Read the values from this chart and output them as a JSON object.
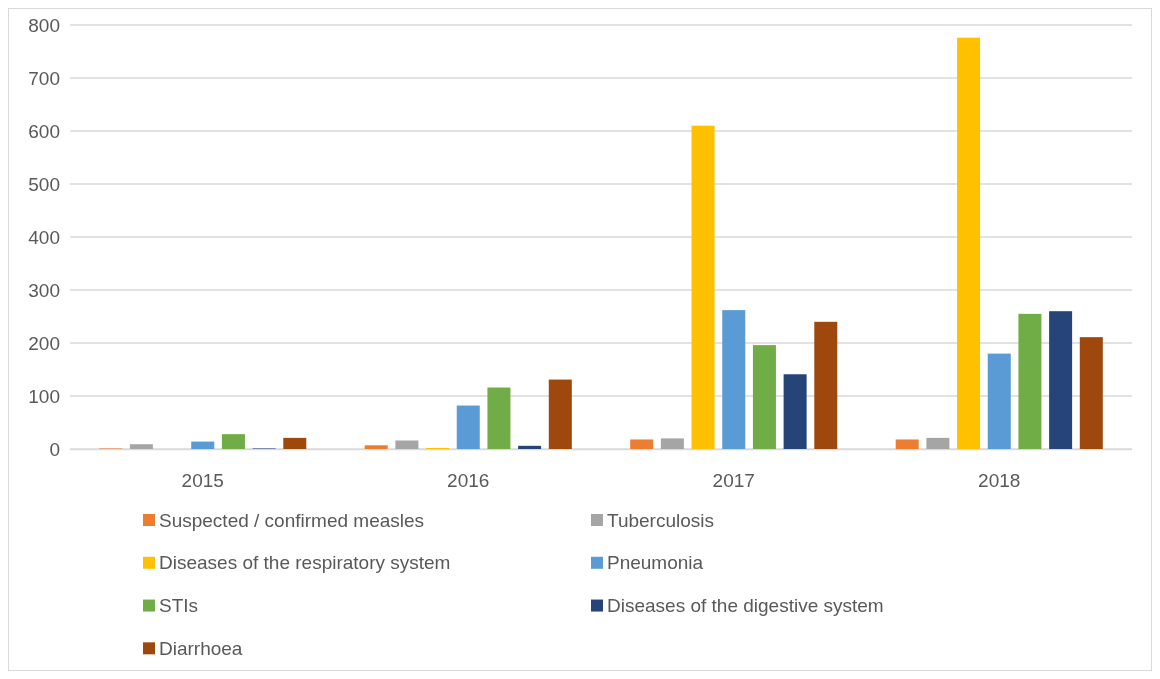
{
  "chart_data": {
    "type": "bar",
    "categories": [
      "2015",
      "2016",
      "2017",
      "2018"
    ],
    "series": [
      {
        "name": "Suspected / confirmed measles",
        "color": "#ed7d31",
        "values": [
          1,
          7,
          18,
          18
        ]
      },
      {
        "name": "Tuberculosis",
        "color": "#a5a5a5",
        "values": [
          9,
          16,
          20,
          21
        ]
      },
      {
        "name": "Diseases of the respiratory system",
        "color": "#ffc000",
        "values": [
          0,
          2,
          610,
          776
        ]
      },
      {
        "name": "Pneumonia",
        "color": "#5b9bd5",
        "values": [
          14,
          82,
          262,
          180
        ]
      },
      {
        "name": "STIs",
        "color": "#70ad47",
        "values": [
          28,
          116,
          196,
          255
        ]
      },
      {
        "name": "Diseases of the digestive system",
        "color": "#264478",
        "values": [
          1,
          6,
          141,
          260
        ]
      },
      {
        "name": "Diarrhoea",
        "color": "#9e480e",
        "values": [
          21,
          131,
          240,
          211
        ]
      }
    ],
    "ylim": [
      0,
      800
    ],
    "yticks": [
      0,
      100,
      200,
      300,
      400,
      500,
      600,
      700,
      800
    ],
    "grid": "y",
    "legend": "bottom"
  }
}
